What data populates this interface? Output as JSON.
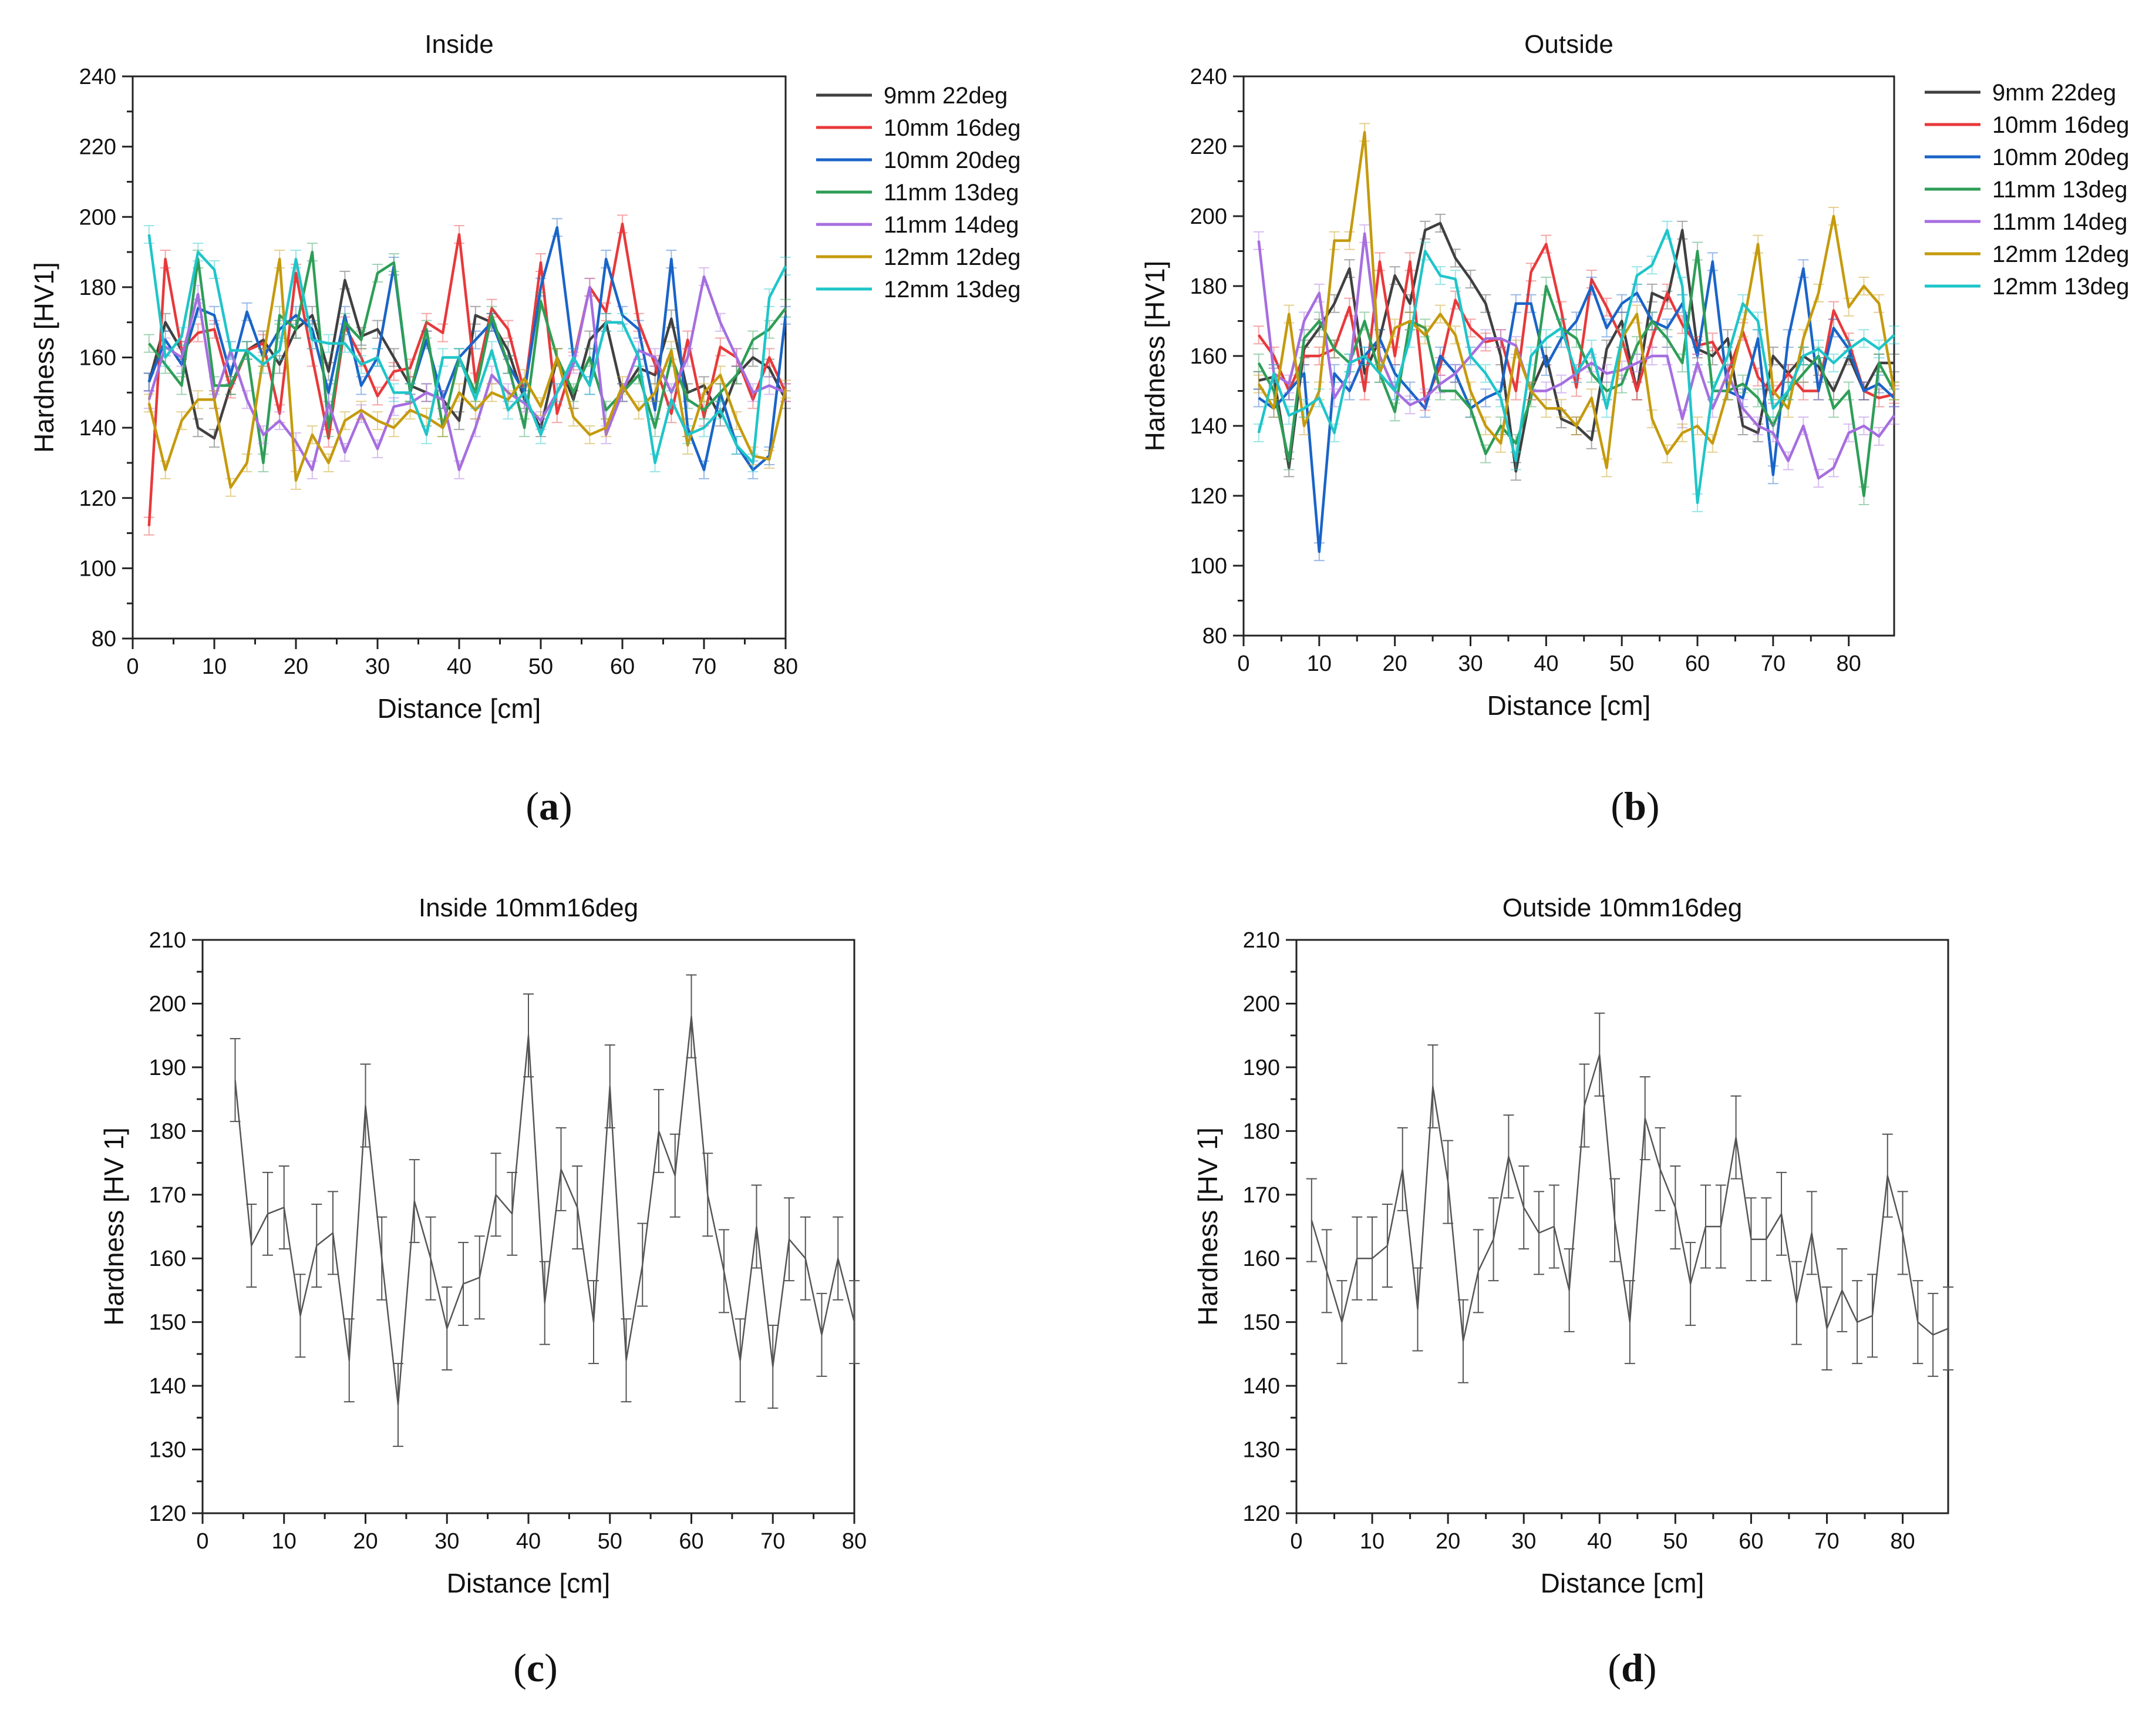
{
  "figure": {
    "panel_labels": [
      "a",
      "b",
      "c",
      "d"
    ]
  },
  "chart_data": [
    {
      "type": "line",
      "title": "Inside",
      "xlabel": "Distance [cm]",
      "ylabel": "Hardness [HV1]",
      "xlim": [
        0,
        80
      ],
      "ylim": [
        80,
        240
      ],
      "xticks": [
        0,
        10,
        20,
        30,
        40,
        50,
        60,
        70,
        80
      ],
      "yticks": [
        80,
        100,
        120,
        140,
        160,
        180,
        200,
        220,
        240
      ],
      "legend": "right",
      "x": [
        2,
        4,
        6,
        8,
        10,
        12,
        14,
        16,
        18,
        20,
        22,
        24,
        26,
        28,
        30,
        32,
        34,
        36,
        38,
        40,
        42,
        44,
        46,
        48,
        50,
        52,
        54,
        56,
        58,
        60,
        62,
        64,
        66,
        68,
        70,
        72,
        74,
        76,
        78,
        80
      ],
      "series": [
        {
          "name": "9mm 22deg",
          "color": "#404040",
          "values": [
            153,
            170,
            162,
            140,
            137,
            152,
            162,
            165,
            158,
            168,
            172,
            156,
            182,
            166,
            168,
            160,
            152,
            150,
            148,
            142,
            172,
            170,
            162,
            148,
            140,
            160,
            148,
            165,
            170,
            150,
            157,
            155,
            171,
            150,
            152,
            143,
            155,
            160,
            157,
            148
          ]
        },
        {
          "name": "10mm 16deg",
          "color": "#e8393b",
          "values": [
            112,
            188,
            162,
            167,
            168,
            151,
            162,
            164,
            144,
            184,
            160,
            137,
            169,
            160,
            149,
            156,
            157,
            170,
            167,
            195,
            153,
            174,
            168,
            150,
            187,
            144,
            159,
            180,
            173,
            198,
            170,
            158,
            144,
            165,
            143,
            163,
            160,
            148,
            160,
            150
          ]
        },
        {
          "name": "10mm 20deg",
          "color": "#1a64c8",
          "values": [
            153,
            165,
            158,
            174,
            172,
            155,
            173,
            160,
            168,
            172,
            168,
            150,
            172,
            152,
            160,
            186,
            150,
            165,
            148,
            160,
            165,
            170,
            158,
            150,
            180,
            197,
            160,
            152,
            188,
            172,
            168,
            145,
            188,
            140,
            128,
            150,
            135,
            128,
            132,
            172
          ]
        },
        {
          "name": "11mm 13deg",
          "color": "#2e9e57",
          "values": [
            164,
            158,
            152,
            188,
            152,
            152,
            162,
            130,
            172,
            168,
            190,
            140,
            170,
            165,
            184,
            187,
            150,
            168,
            140,
            160,
            150,
            172,
            158,
            140,
            176,
            160,
            150,
            160,
            145,
            150,
            155,
            140,
            160,
            148,
            145,
            150,
            155,
            165,
            168,
            174
          ]
        },
        {
          "name": "11mm 14deg",
          "color": "#a66ee0",
          "values": [
            148,
            163,
            160,
            178,
            148,
            162,
            148,
            138,
            142,
            136,
            128,
            147,
            133,
            144,
            134,
            146,
            147,
            150,
            148,
            128,
            140,
            155,
            150,
            147,
            142,
            150,
            158,
            180,
            138,
            150,
            162,
            160,
            150,
            160,
            183,
            170,
            160,
            150,
            152,
            150
          ]
        },
        {
          "name": "12mm 12deg",
          "color": "#c59a0d",
          "values": [
            147,
            128,
            142,
            148,
            148,
            123,
            130,
            160,
            188,
            125,
            138,
            130,
            142,
            145,
            142,
            140,
            145,
            143,
            140,
            150,
            145,
            150,
            148,
            154,
            146,
            160,
            143,
            138,
            140,
            152,
            145,
            150,
            162,
            135,
            150,
            155,
            142,
            132,
            131,
            151
          ]
        },
        {
          "name": "12mm 13deg",
          "color": "#1fc5c9",
          "values": [
            195,
            160,
            166,
            190,
            185,
            162,
            162,
            158,
            162,
            188,
            165,
            164,
            164,
            158,
            160,
            150,
            150,
            138,
            160,
            160,
            148,
            162,
            145,
            150,
            138,
            150,
            160,
            152,
            170,
            170,
            160,
            130,
            148,
            138,
            140,
            145,
            135,
            130,
            177,
            186
          ]
        }
      ]
    },
    {
      "type": "line",
      "title": "Outside",
      "xlabel": "Distance [cm]",
      "ylabel": "Hardness [HV1]",
      "xlim": [
        0,
        86
      ],
      "ylim": [
        80,
        240
      ],
      "xticks": [
        0,
        10,
        20,
        30,
        40,
        50,
        60,
        70,
        80
      ],
      "yticks": [
        80,
        100,
        120,
        140,
        160,
        180,
        200,
        220,
        240
      ],
      "legend": "right",
      "x": [
        2,
        4,
        6,
        8,
        10,
        12,
        14,
        16,
        18,
        20,
        22,
        24,
        26,
        28,
        30,
        32,
        34,
        36,
        38,
        40,
        42,
        44,
        46,
        48,
        50,
        52,
        54,
        56,
        58,
        60,
        62,
        64,
        66,
        68,
        70,
        72,
        74,
        76,
        78,
        80,
        82,
        84,
        86
      ],
      "series": [
        {
          "name": "9mm 22deg",
          "color": "#404040",
          "values": [
            153,
            154,
            128,
            162,
            168,
            175,
            185,
            155,
            165,
            183,
            175,
            196,
            198,
            188,
            182,
            175,
            160,
            127,
            150,
            160,
            142,
            140,
            136,
            162,
            170,
            150,
            178,
            176,
            196,
            162,
            160,
            165,
            140,
            138,
            160,
            155,
            160,
            157,
            150,
            160,
            150,
            158,
            158
          ]
        },
        {
          "name": "10mm 16deg",
          "color": "#e8393b",
          "values": [
            166,
            160,
            150,
            160,
            160,
            162,
            174,
            150,
            187,
            160,
            187,
            147,
            157,
            176,
            168,
            164,
            165,
            150,
            184,
            192,
            173,
            151,
            182,
            174,
            165,
            150,
            165,
            178,
            169,
            163,
            164,
            155,
            167,
            154,
            149,
            155,
            150,
            150,
            173,
            164,
            150,
            148,
            149
          ]
        },
        {
          "name": "10mm 20deg",
          "color": "#1a64c8",
          "values": [
            148,
            145,
            150,
            155,
            104,
            155,
            150,
            160,
            165,
            155,
            150,
            145,
            160,
            155,
            145,
            148,
            150,
            175,
            175,
            157,
            165,
            170,
            180,
            168,
            175,
            178,
            170,
            168,
            175,
            160,
            187,
            150,
            148,
            165,
            126,
            165,
            185,
            150,
            168,
            162,
            150,
            152,
            148
          ]
        },
        {
          "name": "11mm 13deg",
          "color": "#2e9e57",
          "values": [
            158,
            150,
            130,
            165,
            170,
            162,
            158,
            170,
            155,
            144,
            170,
            168,
            150,
            150,
            145,
            132,
            140,
            135,
            148,
            180,
            168,
            165,
            155,
            150,
            152,
            163,
            170,
            165,
            158,
            190,
            150,
            150,
            152,
            148,
            140,
            150,
            155,
            160,
            145,
            150,
            120,
            158,
            150
          ]
        },
        {
          "name": "11mm 14deg",
          "color": "#a66ee0",
          "values": [
            193,
            155,
            152,
            170,
            178,
            148,
            155,
            195,
            160,
            150,
            146,
            148,
            152,
            155,
            160,
            165,
            165,
            163,
            150,
            150,
            152,
            155,
            158,
            155,
            156,
            158,
            160,
            160,
            142,
            158,
            145,
            155,
            145,
            140,
            138,
            130,
            140,
            125,
            128,
            138,
            140,
            137,
            143
          ]
        },
        {
          "name": "12mm 12deg",
          "color": "#c59a0d",
          "values": [
            152,
            145,
            172,
            140,
            150,
            193,
            193,
            224,
            155,
            168,
            170,
            166,
            172,
            166,
            150,
            140,
            135,
            162,
            150,
            145,
            145,
            140,
            148,
            128,
            165,
            172,
            142,
            132,
            138,
            140,
            135,
            150,
            168,
            192,
            150,
            145,
            165,
            178,
            200,
            174,
            180,
            175,
            150
          ]
        },
        {
          "name": "12mm 13deg",
          "color": "#1fc5c9",
          "values": [
            138,
            155,
            143,
            145,
            148,
            138,
            158,
            160,
            155,
            150,
            165,
            190,
            183,
            182,
            160,
            155,
            148,
            130,
            160,
            165,
            168,
            155,
            162,
            145,
            165,
            183,
            186,
            196,
            180,
            118,
            150,
            160,
            175,
            170,
            145,
            150,
            160,
            162,
            158,
            162,
            165,
            162,
            166
          ]
        }
      ]
    },
    {
      "type": "line",
      "title": "Inside 10mm16deg",
      "xlabel": "Distance [cm]",
      "ylabel": "Hardness [HV 1]",
      "xlim": [
        0,
        80
      ],
      "ylim": [
        120,
        210
      ],
      "xticks": [
        0,
        10,
        20,
        30,
        40,
        50,
        60,
        70,
        80
      ],
      "yticks": [
        120,
        130,
        140,
        150,
        160,
        170,
        180,
        190,
        200,
        210
      ],
      "x": [
        4,
        6,
        8,
        10,
        12,
        14,
        16,
        18,
        20,
        22,
        24,
        26,
        28,
        30,
        32,
        34,
        36,
        38,
        40,
        42,
        44,
        46,
        48,
        50,
        52,
        54,
        56,
        58,
        60,
        62,
        64,
        66,
        68,
        70,
        72,
        74,
        76,
        78,
        80
      ],
      "series": [
        {
          "name": "10mm 16deg",
          "color": "#555555",
          "values": [
            188,
            162,
            167,
            168,
            151,
            162,
            164,
            144,
            184,
            160,
            137,
            169,
            160,
            149,
            156,
            157,
            170,
            167,
            195,
            153,
            174,
            168,
            150,
            187,
            144,
            159,
            180,
            173,
            198,
            170,
            158,
            144,
            165,
            143,
            163,
            160,
            148,
            160,
            150
          ],
          "errors": [
            6.5,
            6.5,
            6.5,
            6.5,
            6.5,
            6.5,
            6.5,
            6.5,
            6.5,
            6.5,
            6.5,
            6.5,
            6.5,
            6.5,
            6.5,
            6.5,
            6.5,
            6.5,
            6.5,
            6.5,
            6.5,
            6.5,
            6.5,
            6.5,
            6.5,
            6.5,
            6.5,
            6.5,
            6.5,
            6.5,
            6.5,
            6.5,
            6.5,
            6.5,
            6.5,
            6.5,
            6.5,
            6.5,
            6.5
          ]
        }
      ]
    },
    {
      "type": "line",
      "title": "Outside 10mm16deg",
      "xlabel": "Distance [cm]",
      "ylabel": "Hardness [HV 1]",
      "xlim": [
        0,
        86
      ],
      "ylim": [
        120,
        210
      ],
      "xticks": [
        0,
        10,
        20,
        30,
        40,
        50,
        60,
        70,
        80
      ],
      "yticks": [
        120,
        130,
        140,
        150,
        160,
        170,
        180,
        190,
        200,
        210
      ],
      "x": [
        2,
        4,
        6,
        8,
        10,
        12,
        14,
        16,
        18,
        20,
        22,
        24,
        26,
        28,
        30,
        32,
        34,
        36,
        38,
        40,
        42,
        44,
        46,
        48,
        50,
        52,
        54,
        56,
        58,
        60,
        62,
        64,
        66,
        68,
        70,
        72,
        74,
        76,
        78,
        80,
        82,
        84,
        86
      ],
      "series": [
        {
          "name": "10mm 16deg",
          "color": "#555555",
          "values": [
            166,
            158,
            150,
            160,
            160,
            162,
            174,
            152,
            187,
            172,
            147,
            158,
            163,
            176,
            168,
            164,
            165,
            155,
            184,
            192,
            166,
            150,
            182,
            174,
            168,
            156,
            165,
            165,
            179,
            163,
            163,
            167,
            153,
            164,
            149,
            155,
            150,
            151,
            173,
            164,
            150,
            148,
            149
          ],
          "errors": [
            6.5,
            6.5,
            6.5,
            6.5,
            6.5,
            6.5,
            6.5,
            6.5,
            6.5,
            6.5,
            6.5,
            6.5,
            6.5,
            6.5,
            6.5,
            6.5,
            6.5,
            6.5,
            6.5,
            6.5,
            6.5,
            6.5,
            6.5,
            6.5,
            6.5,
            6.5,
            6.5,
            6.5,
            6.5,
            6.5,
            6.5,
            6.5,
            6.5,
            6.5,
            6.5,
            6.5,
            6.5,
            6.5,
            6.5,
            6.5,
            6.5,
            6.5,
            6.5
          ]
        }
      ]
    }
  ]
}
